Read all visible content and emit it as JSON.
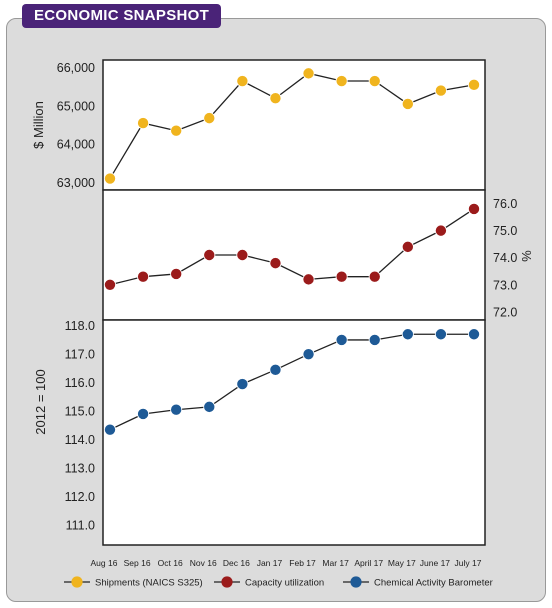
{
  "header": {
    "title": "ECONOMIC SNAPSHOT"
  },
  "chart_data": {
    "type": "line",
    "categories": [
      "Aug 16",
      "Sep 16",
      "Oct 16",
      "Nov 16",
      "Dec 16",
      "Jan 17",
      "Feb 17",
      "Mar 17",
      "April 17",
      "May 17",
      "June 17",
      "July 17"
    ],
    "panels": [
      {
        "series": {
          "name": "Shipments (NAICS S325)",
          "color": "#f0b41e",
          "values": [
            63100,
            64550,
            64350,
            64680,
            65650,
            65200,
            65850,
            65650,
            65650,
            65050,
            65400,
            65550
          ]
        },
        "ylabel": "$ Million",
        "ylim": [
          62800,
          66200
        ],
        "axis": "left",
        "ticks": [
          63000,
          64000,
          65000,
          66000
        ],
        "tick_labels": [
          "63,000",
          "64,000",
          "65,000",
          "66,000"
        ]
      },
      {
        "series": {
          "name": "Capacity utilization",
          "color": "#9b1b1b",
          "values": [
            73.0,
            73.3,
            73.4,
            74.1,
            74.1,
            73.8,
            73.2,
            73.3,
            73.3,
            74.4,
            75.0,
            75.8
          ]
        },
        "ylabel": "%",
        "ylim": [
          71.7,
          76.5
        ],
        "axis": "right",
        "ticks": [
          72.0,
          73.0,
          74.0,
          75.0,
          76.0
        ],
        "tick_labels": [
          "72.0",
          "73.0",
          "74.0",
          "75.0",
          "76.0"
        ]
      },
      {
        "series": {
          "name": "Chemical Activity Barometer",
          "color": "#1e5a96",
          "values": [
            114.35,
            114.9,
            115.05,
            115.15,
            115.95,
            116.45,
            117.0,
            117.5,
            117.5,
            117.7,
            117.7,
            117.7
          ]
        },
        "ylabel": "2012 = 100",
        "ylim": [
          110.3,
          118.2
        ],
        "axis": "left",
        "ticks": [
          111.0,
          112.0,
          113.0,
          114.0,
          115.0,
          116.0,
          117.0,
          118.0
        ],
        "tick_labels": [
          "111.0",
          "112.0",
          "113.0",
          "114.0",
          "115.0",
          "116.0",
          "117.0",
          "118.0"
        ]
      }
    ],
    "legend": [
      "Shipments (NAICS S325)",
      "Capacity utilization",
      "Chemical Activity Barometer"
    ],
    "legend_position": "bottom"
  }
}
